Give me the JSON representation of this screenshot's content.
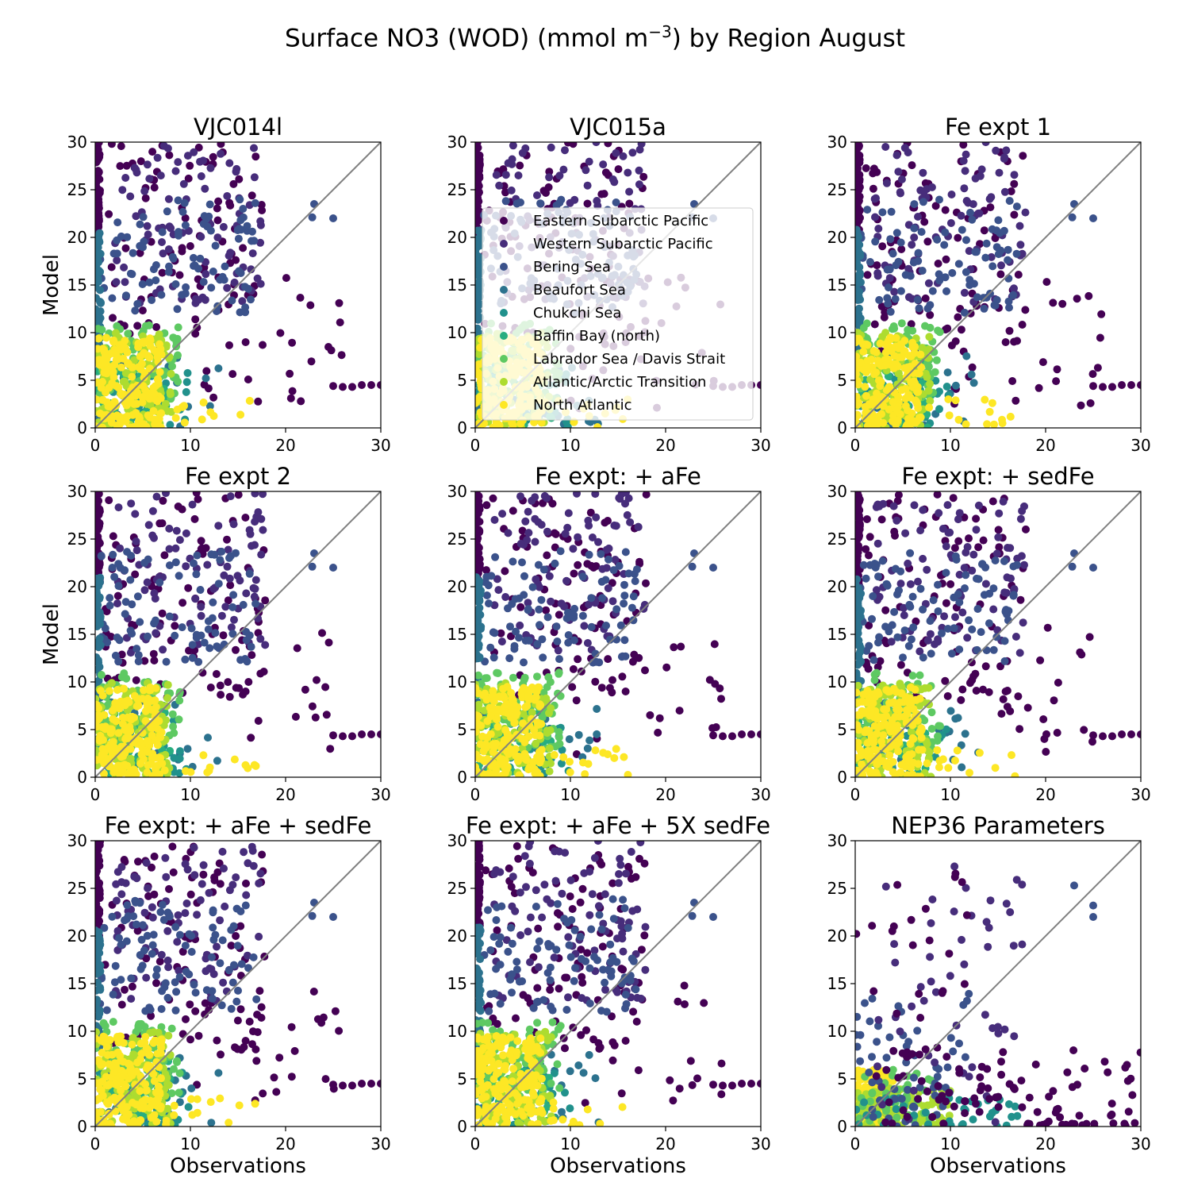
{
  "figure": {
    "title_prefix": "Surface NO3 (WOD) (mmol m",
    "title_sup": "−3",
    "title_suffix": ") by Region August"
  },
  "chart_data": {
    "type": "scatter",
    "xlabel": "Observations",
    "ylabel": "Model",
    "xlim": [
      0,
      30
    ],
    "ylim": [
      0,
      30
    ],
    "ticks": [
      "0",
      "5",
      "10",
      "15",
      "20",
      "25",
      "30"
    ],
    "xticks": [
      "0",
      "10",
      "20",
      "30"
    ],
    "one_to_one_line": true,
    "legend_panel": 1,
    "legend_location": "center",
    "regions": [
      {
        "name": "Eastern Subarctic Pacific",
        "color": "#440154"
      },
      {
        "name": "Western Subarctic Pacific",
        "color": "#472d7b"
      },
      {
        "name": "Bering Sea",
        "color": "#3b528b"
      },
      {
        "name": "Beaufort Sea",
        "color": "#2c728e"
      },
      {
        "name": "Chukchi Sea",
        "color": "#21918c"
      },
      {
        "name": "Baffin Bay (north)",
        "color": "#28ae80"
      },
      {
        "name": "Labrador Sea / Davis Strait",
        "color": "#5ec962"
      },
      {
        "name": "Atlantic/Arctic Transition",
        "color": "#addc30"
      },
      {
        "name": "North Atlantic",
        "color": "#fde725"
      }
    ],
    "panels": [
      {
        "title": "VJC014l",
        "pattern": "standard"
      },
      {
        "title": "VJC015a",
        "pattern": "standard"
      },
      {
        "title": "Fe expt 1",
        "pattern": "standard"
      },
      {
        "title": "Fe expt 2",
        "pattern": "standard"
      },
      {
        "title": "Fe expt: + aFe",
        "pattern": "standard"
      },
      {
        "title": "Fe expt: + sedFe",
        "pattern": "standard"
      },
      {
        "title": "Fe expt: + aFe + sedFe",
        "pattern": "standard"
      },
      {
        "title": "Fe expt: + aFe + 5X sedFe",
        "pattern": "standard"
      },
      {
        "title": "NEP36 Parameters",
        "pattern": "nep36"
      }
    ],
    "tail_points": [
      [
        25,
        4.4
      ],
      [
        26,
        4.3
      ],
      [
        27,
        4.3
      ],
      [
        28,
        4.5
      ],
      [
        29,
        4.5
      ],
      [
        30,
        4.5
      ]
    ],
    "highlight_points": [
      [
        23,
        23.5
      ],
      [
        25,
        22
      ],
      [
        22.8,
        22.1
      ]
    ]
  }
}
